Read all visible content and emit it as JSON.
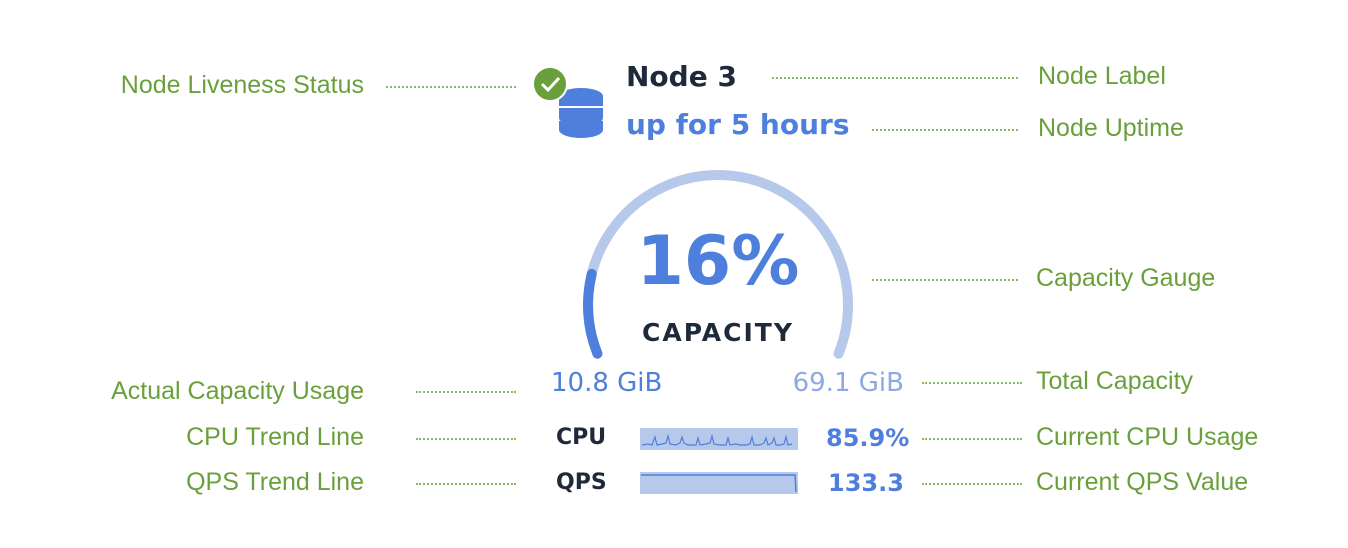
{
  "node": {
    "title": "Node 3",
    "uptime": "up for 5 hours",
    "liveness": "live",
    "status_icon": "check-circle-icon",
    "node_icon": "database-icon"
  },
  "gauge": {
    "percent_text": "16%",
    "percent": 16,
    "caption": "CAPACITY",
    "used": "10.8 GiB",
    "total": "69.1 GiB"
  },
  "metrics": [
    {
      "label": "CPU",
      "value": "85.9%"
    },
    {
      "label": "QPS",
      "value": "133.3"
    }
  ],
  "annotations": {
    "liveness": "Node Liveness Status",
    "label": "Node Label",
    "uptime": "Node Uptime",
    "gauge": "Capacity Gauge",
    "used": "Actual Capacity Usage",
    "total": "Total Capacity",
    "cpu_trend": "CPU Trend Line",
    "cpu_current": "Current CPU Usage",
    "qps_trend": "QPS Trend Line",
    "qps_current": "Current QPS Value"
  },
  "colors": {
    "accent": "#4e7fdc",
    "arc_bg": "#b7c9ea",
    "ok": "#6aa03c",
    "annotation": "#6aa03c"
  }
}
